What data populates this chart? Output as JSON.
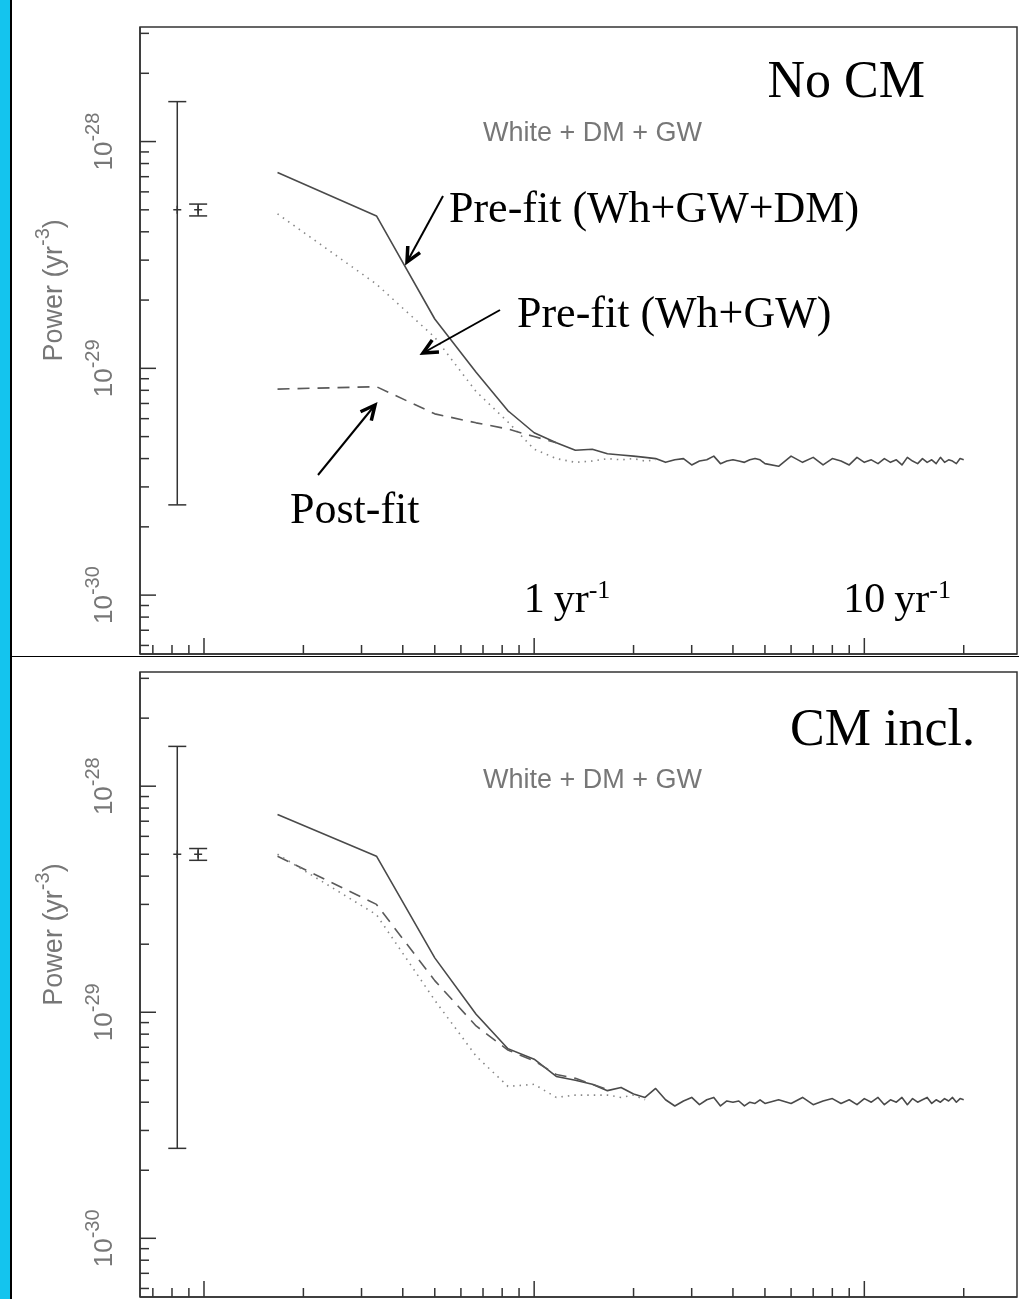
{
  "chart_data": [
    {
      "type": "line",
      "title": "No CM",
      "subtitle": "White + DM + GW",
      "xlabel": "yr$^{-1}$",
      "ylabel": "Power (yr$^{-3}$)",
      "log": "xy",
      "xlim": [
        0.064,
        29
      ],
      "ylim": [
        5.5e-31,
        3.2e-28
      ],
      "xticks": [
        {
          "value": 0.07,
          "label": null
        },
        {
          "value": 0.08,
          "label": null
        },
        {
          "value": 0.09,
          "label": null
        },
        {
          "value": 0.1,
          "label": null
        },
        {
          "value": 0.2,
          "label": null
        },
        {
          "value": 0.3,
          "label": null
        },
        {
          "value": 0.4,
          "label": null
        },
        {
          "value": 0.5,
          "label": null
        },
        {
          "value": 0.6,
          "label": null
        },
        {
          "value": 0.7,
          "label": null
        },
        {
          "value": 0.8,
          "label": null
        },
        {
          "value": 0.9,
          "label": null
        },
        1,
        {
          "value": 2,
          "label": null
        },
        {
          "value": 3,
          "label": null
        },
        {
          "value": 4,
          "label": null
        },
        {
          "value": 5,
          "label": null
        },
        {
          "value": 6,
          "label": null
        },
        {
          "value": 7,
          "label": null
        },
        {
          "value": 8,
          "label": null
        },
        {
          "value": 9,
          "label": null
        },
        10,
        {
          "value": 20,
          "label": null
        }
      ],
      "yticks": [
        {
          "value": 6e-31,
          "label": null
        },
        {
          "value": 7e-31,
          "label": null
        },
        {
          "value": 8e-31,
          "label": null
        },
        {
          "value": 9e-31,
          "label": null
        },
        {
          "value": 1e-30,
          "label": "10$^{-30}$"
        },
        {
          "value": 2e-30,
          "label": null
        },
        {
          "value": 3e-30,
          "label": null
        },
        {
          "value": 4e-30,
          "label": null
        },
        {
          "value": 5e-30,
          "label": null
        },
        {
          "value": 6e-30,
          "label": null
        },
        {
          "value": 7e-30,
          "label": null
        },
        {
          "value": 8e-30,
          "label": null
        },
        {
          "value": 9e-30,
          "label": null
        },
        {
          "value": 1e-29,
          "label": "10$^{-29}$"
        },
        {
          "value": 2e-29,
          "label": null
        },
        {
          "value": 3e-29,
          "label": null
        },
        {
          "value": 4e-29,
          "label": null
        },
        {
          "value": 5e-29,
          "label": null
        },
        {
          "value": 6e-29,
          "label": null
        },
        {
          "value": 7e-29,
          "label": null
        },
        {
          "value": 8e-29,
          "label": null
        },
        {
          "value": 9e-29,
          "label": null
        },
        {
          "value": 1e-28,
          "label": "10$^{-28}$"
        },
        {
          "value": 2e-28,
          "label": null
        },
        {
          "value": 3e-28,
          "label": null
        }
      ],
      "x": [
        0.167,
        0.333,
        0.5,
        0.667,
        0.833,
        1,
        1.167,
        1.333,
        1.5,
        1.667,
        1.833,
        2,
        2.167,
        2.333,
        2.5,
        2.667,
        2.833,
        3,
        3.167,
        3.333,
        3.5,
        3.667,
        3.833,
        4,
        4.167,
        4.333,
        4.5,
        4.667,
        4.833,
        5,
        5.5,
        6,
        6.5,
        7,
        7.5,
        8,
        8.5,
        9,
        9.5,
        10,
        10.5,
        11,
        11.5,
        12,
        12.5,
        13,
        13.5,
        14,
        14.5,
        15,
        15.5,
        16,
        16.5,
        17,
        17.5,
        18,
        18.5,
        19,
        19.5,
        20
      ],
      "series": [
        {
          "name": "Pre-fit (Wh+GW+DM)",
          "color": "#4a4a4a",
          "line_style": "solid",
          "values": [
            7.3e-29,
            4.7e-29,
            1.65e-29,
            9.6e-30,
            6.5e-30,
            5.2e-30,
            4.7e-30,
            4.35e-30,
            4.4e-30,
            4.2e-30,
            4.15e-30,
            4.1e-30,
            4.05e-30,
            4e-30,
            3.85e-30,
            3.95e-30,
            4e-30,
            3.75e-30,
            3.9e-30,
            3.95e-30,
            4.1e-30,
            3.8e-30,
            3.9e-30,
            3.95e-30,
            3.9e-30,
            3.85e-30,
            3.95e-30,
            4e-30,
            3.95e-30,
            3.8e-30,
            3.7e-30,
            4.1e-30,
            3.85e-30,
            4.05e-30,
            3.75e-30,
            4e-30,
            3.9e-30,
            3.75e-30,
            4.05e-30,
            3.85e-30,
            3.95e-30,
            3.8e-30,
            4e-30,
            3.85e-30,
            3.95e-30,
            3.75e-30,
            4.05e-30,
            3.9e-30,
            3.8e-30,
            4e-30,
            3.85e-30,
            3.95e-30,
            3.8e-30,
            4.05e-30,
            3.85e-30,
            3.95e-30,
            3.9e-30,
            3.8e-30,
            4e-30,
            3.95e-30
          ]
        },
        {
          "name": "Pre-fit (Wh+GW)",
          "color": "#888888",
          "line_style": "dotted",
          "x": [
            0.167,
            0.333,
            0.5,
            0.667,
            0.833,
            1,
            1.167,
            1.333,
            1.5,
            1.667,
            1.833,
            2,
            2.167,
            2.333
          ],
          "values": [
            4.8e-29,
            2.35e-29,
            1.37e-29,
            7.9e-30,
            5.8e-30,
            4.4e-30,
            4e-30,
            3.85e-30,
            3.9e-30,
            4e-30,
            3.95e-30,
            4e-30,
            3.9e-30,
            3.95e-30
          ]
        },
        {
          "name": "Post-fit",
          "color": "#5a5a5a",
          "line_style": "dashed",
          "x": [
            0.167,
            0.333,
            0.5,
            0.667,
            0.833,
            1,
            1.167
          ],
          "values": [
            8.1e-30,
            8.3e-30,
            6.3e-30,
            5.75e-30,
            5.4e-30,
            5e-30,
            4.7e-30
          ]
        },
        {
          "type": "scatter",
          "color": "#333333",
          "marker": "cross",
          "x": [
            0.083,
            0.096
          ],
          "values": [
            5e-29,
            5e-29
          ],
          "errors": [
            [
              2.5e-30,
              1.5e-28
            ],
            [
              4.7e-29,
              5.3e-29
            ]
          ]
        }
      ]
    },
    {
      "type": "line",
      "title": "CM incl.",
      "subtitle": "White + DM + GW",
      "ylabel": "Power (yr$^{-3}$)",
      "log": "xy",
      "xlim": [
        0.064,
        29
      ],
      "ylim": [
        5.5e-31,
        3.2e-28
      ],
      "tick_labels": "y",
      "xticks": [
        {
          "value": 0.07,
          "label": null
        },
        {
          "value": 0.08,
          "label": null
        },
        {
          "value": 0.09,
          "label": null
        },
        {
          "value": 0.1,
          "label": null
        },
        {
          "value": 0.2,
          "label": null
        },
        {
          "value": 0.3,
          "label": null
        },
        {
          "value": 0.4,
          "label": null
        },
        {
          "value": 0.5,
          "label": null
        },
        {
          "value": 0.6,
          "label": null
        },
        {
          "value": 0.7,
          "label": null
        },
        {
          "value": 0.8,
          "label": null
        },
        {
          "value": 0.9,
          "label": null
        },
        {
          "value": 1,
          "label": null
        },
        {
          "value": 2,
          "label": null
        },
        {
          "value": 3,
          "label": null
        },
        {
          "value": 4,
          "label": null
        },
        {
          "value": 5,
          "label": null
        },
        {
          "value": 6,
          "label": null
        },
        {
          "value": 7,
          "label": null
        },
        {
          "value": 8,
          "label": null
        },
        {
          "value": 9,
          "label": null
        },
        {
          "value": 10,
          "label": null
        },
        {
          "value": 20,
          "label": null
        }
      ],
      "yticks": [
        {
          "value": 6e-31,
          "label": null
        },
        {
          "value": 7e-31,
          "label": null
        },
        {
          "value": 8e-31,
          "label": null
        },
        {
          "value": 9e-31,
          "label": null
        },
        {
          "value": 1e-30,
          "label": "10$^{-30}$"
        },
        {
          "value": 2e-30,
          "label": null
        },
        {
          "value": 3e-30,
          "label": null
        },
        {
          "value": 4e-30,
          "label": null
        },
        {
          "value": 5e-30,
          "label": null
        },
        {
          "value": 6e-30,
          "label": null
        },
        {
          "value": 7e-30,
          "label": null
        },
        {
          "value": 8e-30,
          "label": null
        },
        {
          "value": 9e-30,
          "label": null
        },
        {
          "value": 1e-29,
          "label": "10$^{-29}$"
        },
        {
          "value": 2e-29,
          "label": null
        },
        {
          "value": 3e-29,
          "label": null
        },
        {
          "value": 4e-29,
          "label": null
        },
        {
          "value": 5e-29,
          "label": null
        },
        {
          "value": 6e-29,
          "label": null
        },
        {
          "value": 7e-29,
          "label": null
        },
        {
          "value": 8e-29,
          "label": null
        },
        {
          "value": 9e-29,
          "label": null
        },
        {
          "value": 1e-28,
          "label": "10$^{-28}$"
        },
        {
          "value": 2e-28,
          "label": null
        },
        {
          "value": 3e-28,
          "label": null
        }
      ],
      "x": [
        0.167,
        0.333,
        0.5,
        0.667,
        0.833,
        1,
        1.167,
        1.333,
        1.5,
        1.667,
        1.833,
        2,
        2.167,
        2.333,
        2.5,
        2.667,
        2.833,
        3,
        3.167,
        3.333,
        3.5,
        3.667,
        3.833,
        4,
        4.167,
        4.333,
        4.5,
        4.667,
        4.833,
        5,
        5.5,
        6,
        6.5,
        7,
        7.5,
        8,
        8.5,
        9,
        9.5,
        10,
        10.5,
        11,
        11.5,
        12,
        12.5,
        13,
        13.5,
        14,
        14.5,
        15,
        15.5,
        16,
        16.5,
        17,
        17.5,
        18,
        18.5,
        19,
        19.5,
        20
      ],
      "series": [
        {
          "color": "#4a4a4a",
          "line_style": "solid",
          "values": [
            7.5e-29,
            4.9e-29,
            1.74e-29,
            9.8e-30,
            6.9e-30,
            6.2e-30,
            5.2e-30,
            5e-30,
            4.8e-30,
            4.5e-30,
            4.65e-30,
            4.35e-30,
            4.2e-30,
            4.6e-30,
            4.1e-30,
            3.85e-30,
            4.05e-30,
            4.2e-30,
            3.9e-30,
            4.1e-30,
            4.2e-30,
            3.85e-30,
            4.05e-30,
            4e-30,
            4.05e-30,
            3.85e-30,
            4e-30,
            3.95e-30,
            4.1e-30,
            3.95e-30,
            4.1e-30,
            3.95e-30,
            4.2e-30,
            3.9e-30,
            4.05e-30,
            4.15e-30,
            3.95e-30,
            4.1e-30,
            3.9e-30,
            4.15e-30,
            4e-30,
            4.2e-30,
            3.9e-30,
            4.1e-30,
            4e-30,
            4.2e-30,
            3.9e-30,
            4.15e-30,
            4e-30,
            4.1e-30,
            4.2e-30,
            3.95e-30,
            4.1e-30,
            4e-30,
            4.15e-30,
            4.05e-30,
            4.2e-30,
            4e-30,
            4.15e-30,
            4.1e-30
          ]
        },
        {
          "color": "#5a5a5a",
          "line_style": "dashed",
          "x": [
            0.167,
            0.333,
            0.5,
            0.667,
            0.833,
            1,
            1.167,
            1.333,
            1.5,
            1.667
          ],
          "values": [
            4.9e-29,
            3e-29,
            1.38e-29,
            8.7e-30,
            6.8e-30,
            6.1e-30,
            5.3e-30,
            5.1e-30,
            4.8e-30,
            4.55e-30
          ]
        },
        {
          "color": "#888888",
          "line_style": "dotted",
          "x": [
            0.167,
            0.333,
            0.5,
            0.667,
            0.833,
            1,
            1.167,
            1.333,
            1.5,
            1.667,
            1.833,
            2,
            2.167
          ],
          "values": [
            5e-29,
            2.7e-29,
            1.13e-29,
            6.4e-30,
            4.7e-30,
            4.8e-30,
            4.2e-30,
            4.3e-30,
            4.3e-30,
            4.3e-30,
            4.2e-30,
            4.3e-30,
            4.1e-30
          ]
        },
        {
          "type": "scatter",
          "color": "#333333",
          "marker": "cross",
          "x": [
            0.083,
            0.096
          ],
          "values": [
            5e-29,
            5e-29
          ],
          "errors": [
            [
              2.5e-30,
              1.5e-28
            ],
            [
              4.7e-29,
              5.3e-29
            ]
          ]
        }
      ]
    }
  ]
}
